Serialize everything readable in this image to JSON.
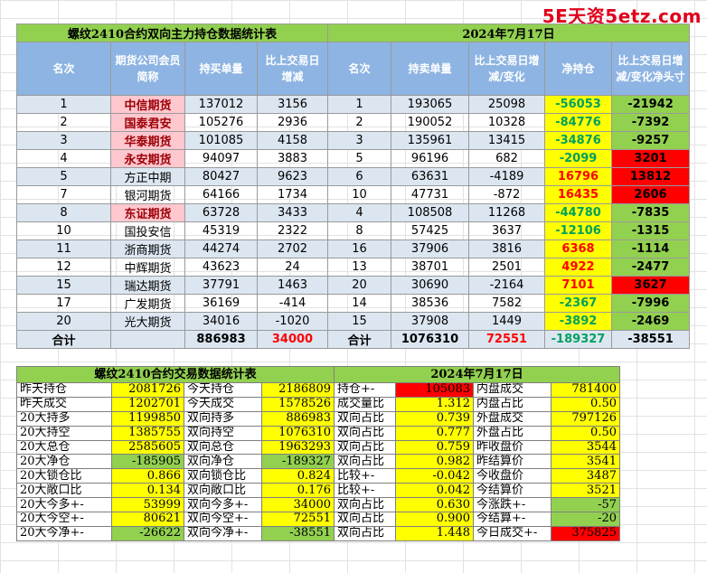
{
  "watermark": "5E天资5etz.com",
  "top": {
    "title_left": "螺纹2410合约双向主力持仓数据统计表",
    "title_right": "2024年7月17日",
    "headers": [
      "名次",
      "期货公司会员简称",
      "持买单量",
      "比上交易日增减",
      "名次",
      "持卖单量",
      "比上交易日增减/变化",
      "净持仓",
      "比上交易日增减/变化净头寸"
    ],
    "rows": [
      {
        "rank": "1",
        "name": "中信期货",
        "buy": "137012",
        "buy_chg": "3156",
        "rank2": "1",
        "sell": "193065",
        "sell_chg": "25098",
        "net": "-56053",
        "net_chg": "-21942",
        "name_hl": true
      },
      {
        "rank": "2",
        "name": "国泰君安",
        "buy": "105276",
        "buy_chg": "2936",
        "rank2": "2",
        "sell": "190052",
        "sell_chg": "10328",
        "net": "-84776",
        "net_chg": "-7392",
        "name_hl": true
      },
      {
        "rank": "3",
        "name": "华泰期货",
        "buy": "101085",
        "buy_chg": "4158",
        "rank2": "3",
        "sell": "135961",
        "sell_chg": "13415",
        "net": "-34876",
        "net_chg": "-9257",
        "name_hl": true
      },
      {
        "rank": "4",
        "name": "永安期货",
        "buy": "94097",
        "buy_chg": "3883",
        "rank2": "5",
        "sell": "96196",
        "sell_chg": "682",
        "net": "-2099",
        "net_chg": "3201",
        "name_hl": true
      },
      {
        "rank": "5",
        "name": "方正中期",
        "buy": "80427",
        "buy_chg": "9623",
        "rank2": "6",
        "sell": "63631",
        "sell_chg": "-4189",
        "net": "16796",
        "net_chg": "13812",
        "name_hl": false
      },
      {
        "rank": "7",
        "name": "银河期货",
        "buy": "64166",
        "buy_chg": "1734",
        "rank2": "10",
        "sell": "47731",
        "sell_chg": "-872",
        "net": "16435",
        "net_chg": "2606",
        "name_hl": false
      },
      {
        "rank": "8",
        "name": "东证期货",
        "buy": "63728",
        "buy_chg": "3433",
        "rank2": "4",
        "sell": "108508",
        "sell_chg": "11268",
        "net": "-44780",
        "net_chg": "-7835",
        "name_hl": true
      },
      {
        "rank": "10",
        "name": "国投安信",
        "buy": "45319",
        "buy_chg": "2322",
        "rank2": "8",
        "sell": "57425",
        "sell_chg": "3637",
        "net": "-12106",
        "net_chg": "-1315",
        "name_hl": false
      },
      {
        "rank": "11",
        "name": "浙商期货",
        "buy": "44274",
        "buy_chg": "2702",
        "rank2": "16",
        "sell": "37906",
        "sell_chg": "3816",
        "net": "6368",
        "net_chg": "-1114",
        "name_hl": false
      },
      {
        "rank": "12",
        "name": "中辉期货",
        "buy": "43623",
        "buy_chg": "24",
        "rank2": "13",
        "sell": "38701",
        "sell_chg": "2501",
        "net": "4922",
        "net_chg": "-2477",
        "name_hl": false
      },
      {
        "rank": "15",
        "name": "瑞达期货",
        "buy": "37791",
        "buy_chg": "1463",
        "rank2": "20",
        "sell": "30690",
        "sell_chg": "-2164",
        "net": "7101",
        "net_chg": "3627",
        "name_hl": false
      },
      {
        "rank": "17",
        "name": "广发期货",
        "buy": "36169",
        "buy_chg": "-414",
        "rank2": "14",
        "sell": "38536",
        "sell_chg": "7582",
        "net": "-2367",
        "net_chg": "-7996",
        "name_hl": false
      },
      {
        "rank": "20",
        "name": "光大期货",
        "buy": "34016",
        "buy_chg": "-1020",
        "rank2": "15",
        "sell": "37908",
        "sell_chg": "1449",
        "net": "-3892",
        "net_chg": "-2469",
        "name_hl": false
      }
    ],
    "total": {
      "label": "合计",
      "buy": "886983",
      "buy_chg": "34000",
      "label2": "合计",
      "sell": "1076310",
      "sell_chg": "72551",
      "net": "-189327",
      "net_chg": "-38551"
    }
  },
  "bottom": {
    "title_left": "螺纹2410合约交易数据统计表",
    "title_right": "2024年7月17日",
    "rows": [
      {
        "l1": "昨天持仓",
        "v1": "2081726",
        "l2": "今天持仓",
        "v2": "2186809",
        "l3": "持仓+-",
        "v3": "105083",
        "l4": "内盘成交",
        "v4": "781400",
        "c1": "",
        "c2": "",
        "c3": "red",
        "c4": ""
      },
      {
        "l1": "昨天成交",
        "v1": "1202701",
        "l2": "今天成交",
        "v2": "1578526",
        "l3": "成交量比",
        "v3": "1.312",
        "l4": "内盘占比",
        "v4": "0.50",
        "c1": "",
        "c2": "",
        "c3": "",
        "c4": ""
      },
      {
        "l1": "20大持多",
        "v1": "1199850",
        "l2": "双向持多",
        "v2": "886983",
        "l3": "双向占比",
        "v3": "0.739",
        "l4": "外盘成交",
        "v4": "797126",
        "c1": "",
        "c2": "",
        "c3": "",
        "c4": ""
      },
      {
        "l1": "20大持空",
        "v1": "1385755",
        "l2": "双向持空",
        "v2": "1076310",
        "l3": "双向占比",
        "v3": "0.777",
        "l4": "外盘占比",
        "v4": "0.50",
        "c1": "",
        "c2": "",
        "c3": "",
        "c4": ""
      },
      {
        "l1": "20大总仓",
        "v1": "2585605",
        "l2": "双向总仓",
        "v2": "1963293",
        "l3": "双向占比",
        "v3": "0.759",
        "l4": "昨收盘价",
        "v4": "3544",
        "c1": "",
        "c2": "",
        "c3": "",
        "c4": ""
      },
      {
        "l1": "20大净仓",
        "v1": "-185905",
        "l2": "双向净仓",
        "v2": "-189327",
        "l3": "双向占比",
        "v3": "0.982",
        "l4": "昨结算价",
        "v4": "3541",
        "c1": "green",
        "c2": "green",
        "c3": "",
        "c4": ""
      },
      {
        "l1": "20大锁仓比",
        "v1": "0.866",
        "l2": "双向锁仓比",
        "v2": "0.824",
        "l3": "比较+-",
        "v3": "-0.042",
        "l4": "今收盘价",
        "v4": "3487",
        "c1": "",
        "c2": "",
        "c3": "",
        "c4": ""
      },
      {
        "l1": "20大敞口比",
        "v1": "0.134",
        "l2": "双向敞口比",
        "v2": "0.176",
        "l3": "比较+-",
        "v3": "0.042",
        "l4": "今结算价",
        "v4": "3521",
        "c1": "",
        "c2": "",
        "c3": "",
        "c4": ""
      },
      {
        "l1": "20大今多+-",
        "v1": "53999",
        "l2": "双向今多+-",
        "v2": "34000",
        "l3": "双向占比",
        "v3": "0.630",
        "l4": "今涨跌+-",
        "v4": "-57",
        "c1": "",
        "c2": "",
        "c3": "",
        "c4": "green"
      },
      {
        "l1": "20大今空+-",
        "v1": "80621",
        "l2": "双向今空+-",
        "v2": "72551",
        "l3": "双向占比",
        "v3": "0.900",
        "l4": "今结算+-",
        "v4": "-20",
        "c1": "",
        "c2": "",
        "c3": "",
        "c4": "green"
      },
      {
        "l1": "20大今净+-",
        "v1": "-26622",
        "l2": "双向今净+-",
        "v2": "-38551",
        "l3": "双向占比",
        "v3": "1.448",
        "l4": "今日成交+-",
        "v4": "375825",
        "c1": "green",
        "c2": "green",
        "c3": "",
        "c4": "red"
      }
    ]
  }
}
